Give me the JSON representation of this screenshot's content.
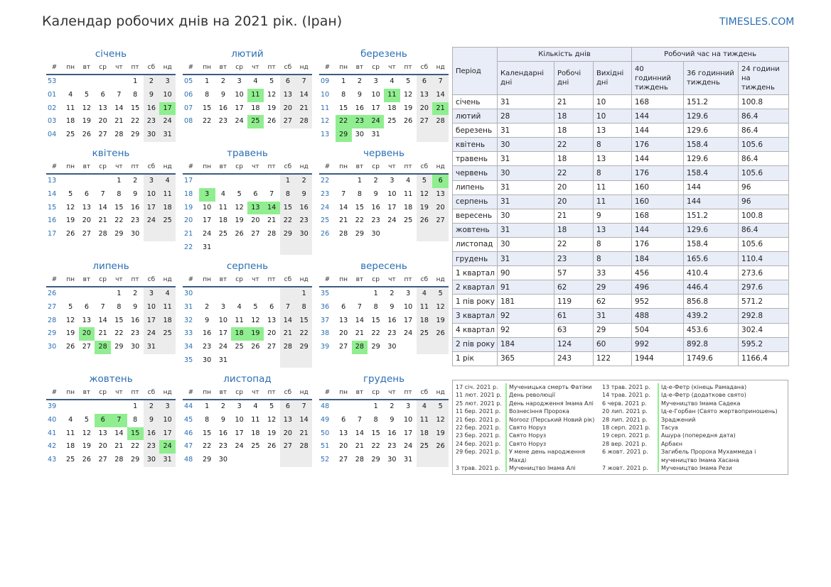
{
  "title": "Календар робочих днів на 2021 рік. (Іран)",
  "site": "TIMESLES.COM",
  "colors": {
    "accent": "#2a6eb4",
    "holiday": "#90ee90",
    "weekend": "#ececec",
    "rule": "#3d5b82",
    "table_header": "#e8edf8"
  },
  "calendar_header": [
    "#",
    "пн",
    "вт",
    "ср",
    "чт",
    "пт",
    "сб",
    "нд"
  ],
  "months": [
    {
      "name": "січень",
      "weeks": [
        [
          "53",
          "",
          "",
          "",
          "",
          "1",
          "2",
          "3"
        ],
        [
          "01",
          "4",
          "5",
          "6",
          "7",
          "8",
          "9",
          "10"
        ],
        [
          "02",
          "11",
          "12",
          "13",
          "14",
          "15",
          "16",
          "17"
        ],
        [
          "03",
          "18",
          "19",
          "20",
          "21",
          "22",
          "23",
          "24"
        ],
        [
          "04",
          "25",
          "26",
          "27",
          "28",
          "29",
          "30",
          "31"
        ]
      ],
      "holidays": [
        17
      ]
    },
    {
      "name": "лютий",
      "weeks": [
        [
          "05",
          "1",
          "2",
          "3",
          "4",
          "5",
          "6",
          "7"
        ],
        [
          "06",
          "8",
          "9",
          "10",
          "11",
          "12",
          "13",
          "14"
        ],
        [
          "07",
          "15",
          "16",
          "17",
          "18",
          "19",
          "20",
          "21"
        ],
        [
          "08",
          "22",
          "23",
          "24",
          "25",
          "26",
          "27",
          "28"
        ]
      ],
      "holidays": [
        11,
        25
      ]
    },
    {
      "name": "березень",
      "weeks": [
        [
          "09",
          "1",
          "2",
          "3",
          "4",
          "5",
          "6",
          "7"
        ],
        [
          "10",
          "8",
          "9",
          "10",
          "11",
          "12",
          "13",
          "14"
        ],
        [
          "11",
          "15",
          "16",
          "17",
          "18",
          "19",
          "20",
          "21"
        ],
        [
          "12",
          "22",
          "23",
          "24",
          "25",
          "26",
          "27",
          "28"
        ],
        [
          "13",
          "29",
          "30",
          "31",
          "",
          "",
          "",
          ""
        ]
      ],
      "holidays": [
        11,
        21,
        22,
        23,
        24,
        29
      ]
    },
    {
      "name": "квітень",
      "weeks": [
        [
          "13",
          "",
          "",
          "",
          "1",
          "2",
          "3",
          "4"
        ],
        [
          "14",
          "5",
          "6",
          "7",
          "8",
          "9",
          "10",
          "11"
        ],
        [
          "15",
          "12",
          "13",
          "14",
          "15",
          "16",
          "17",
          "18"
        ],
        [
          "16",
          "19",
          "20",
          "21",
          "22",
          "23",
          "24",
          "25"
        ],
        [
          "17",
          "26",
          "27",
          "28",
          "29",
          "30",
          "",
          ""
        ]
      ],
      "holidays": []
    },
    {
      "name": "травень",
      "weeks": [
        [
          "17",
          "",
          "",
          "",
          "",
          "",
          "1",
          "2"
        ],
        [
          "18",
          "3",
          "4",
          "5",
          "6",
          "7",
          "8",
          "9"
        ],
        [
          "19",
          "10",
          "11",
          "12",
          "13",
          "14",
          "15",
          "16"
        ],
        [
          "20",
          "17",
          "18",
          "19",
          "20",
          "21",
          "22",
          "23"
        ],
        [
          "21",
          "24",
          "25",
          "26",
          "27",
          "28",
          "29",
          "30"
        ],
        [
          "22",
          "31",
          "",
          "",
          "",
          "",
          "",
          ""
        ]
      ],
      "holidays": [
        3,
        13,
        14
      ]
    },
    {
      "name": "червень",
      "weeks": [
        [
          "22",
          "",
          "1",
          "2",
          "3",
          "4",
          "5",
          "6"
        ],
        [
          "23",
          "7",
          "8",
          "9",
          "10",
          "11",
          "12",
          "13"
        ],
        [
          "24",
          "14",
          "15",
          "16",
          "17",
          "18",
          "19",
          "20"
        ],
        [
          "25",
          "21",
          "22",
          "23",
          "24",
          "25",
          "26",
          "27"
        ],
        [
          "26",
          "28",
          "29",
          "30",
          "",
          "",
          "",
          ""
        ]
      ],
      "holidays": [
        6
      ]
    },
    {
      "name": "липень",
      "weeks": [
        [
          "26",
          "",
          "",
          "",
          "1",
          "2",
          "3",
          "4"
        ],
        [
          "27",
          "5",
          "6",
          "7",
          "8",
          "9",
          "10",
          "11"
        ],
        [
          "28",
          "12",
          "13",
          "14",
          "15",
          "16",
          "17",
          "18"
        ],
        [
          "29",
          "19",
          "20",
          "21",
          "22",
          "23",
          "24",
          "25"
        ],
        [
          "30",
          "26",
          "27",
          "28",
          "29",
          "30",
          "31",
          ""
        ]
      ],
      "holidays": [
        20,
        28
      ]
    },
    {
      "name": "серпень",
      "weeks": [
        [
          "30",
          "",
          "",
          "",
          "",
          "",
          "",
          "1"
        ],
        [
          "31",
          "2",
          "3",
          "4",
          "5",
          "6",
          "7",
          "8"
        ],
        [
          "32",
          "9",
          "10",
          "11",
          "12",
          "13",
          "14",
          "15"
        ],
        [
          "33",
          "16",
          "17",
          "18",
          "19",
          "20",
          "21",
          "22"
        ],
        [
          "34",
          "23",
          "24",
          "25",
          "26",
          "27",
          "28",
          "29"
        ],
        [
          "35",
          "30",
          "31",
          "",
          "",
          "",
          "",
          ""
        ]
      ],
      "holidays": [
        18,
        19
      ]
    },
    {
      "name": "вересень",
      "weeks": [
        [
          "35",
          "",
          "",
          "1",
          "2",
          "3",
          "4",
          "5"
        ],
        [
          "36",
          "6",
          "7",
          "8",
          "9",
          "10",
          "11",
          "12"
        ],
        [
          "37",
          "13",
          "14",
          "15",
          "16",
          "17",
          "18",
          "19"
        ],
        [
          "38",
          "20",
          "21",
          "22",
          "23",
          "24",
          "25",
          "26"
        ],
        [
          "39",
          "27",
          "28",
          "29",
          "30",
          "",
          "",
          ""
        ]
      ],
      "holidays": [
        28
      ]
    },
    {
      "name": "жовтень",
      "weeks": [
        [
          "39",
          "",
          "",
          "",
          "",
          "1",
          "2",
          "3"
        ],
        [
          "40",
          "4",
          "5",
          "6",
          "7",
          "8",
          "9",
          "10"
        ],
        [
          "41",
          "11",
          "12",
          "13",
          "14",
          "15",
          "16",
          "17"
        ],
        [
          "42",
          "18",
          "19",
          "20",
          "21",
          "22",
          "23",
          "24"
        ],
        [
          "43",
          "25",
          "26",
          "27",
          "28",
          "29",
          "30",
          "31"
        ]
      ],
      "holidays": [
        6,
        7,
        15,
        24
      ]
    },
    {
      "name": "листопад",
      "weeks": [
        [
          "44",
          "1",
          "2",
          "3",
          "4",
          "5",
          "6",
          "7"
        ],
        [
          "45",
          "8",
          "9",
          "10",
          "11",
          "12",
          "13",
          "14"
        ],
        [
          "46",
          "15",
          "16",
          "17",
          "18",
          "19",
          "20",
          "21"
        ],
        [
          "47",
          "22",
          "23",
          "24",
          "25",
          "26",
          "27",
          "28"
        ],
        [
          "48",
          "29",
          "30",
          "",
          "",
          "",
          "",
          ""
        ]
      ],
      "holidays": []
    },
    {
      "name": "грудень",
      "weeks": [
        [
          "48",
          "",
          "",
          "1",
          "2",
          "3",
          "4",
          "5"
        ],
        [
          "49",
          "6",
          "7",
          "8",
          "9",
          "10",
          "11",
          "12"
        ],
        [
          "50",
          "13",
          "14",
          "15",
          "16",
          "17",
          "18",
          "19"
        ],
        [
          "51",
          "20",
          "21",
          "22",
          "23",
          "24",
          "25",
          "26"
        ],
        [
          "52",
          "27",
          "28",
          "29",
          "30",
          "31",
          "",
          ""
        ]
      ],
      "holidays": []
    }
  ],
  "stats": {
    "period_label": "Період",
    "days_group": "Кількість днів",
    "hours_group": "Робочий час на тиждень",
    "subheaders": [
      "Календарні дні",
      "Робочі дні",
      "Вихідні дні",
      "40 годинний тиждень",
      "36 годинний тиждень",
      "24 години на тиждень"
    ],
    "rows": [
      [
        "січень",
        "31",
        "21",
        "10",
        "168",
        "151.2",
        "100.8"
      ],
      [
        "лютий",
        "28",
        "18",
        "10",
        "144",
        "129.6",
        "86.4"
      ],
      [
        "березень",
        "31",
        "18",
        "13",
        "144",
        "129.6",
        "86.4"
      ],
      [
        "квітень",
        "30",
        "22",
        "8",
        "176",
        "158.4",
        "105.6"
      ],
      [
        "травень",
        "31",
        "18",
        "13",
        "144",
        "129.6",
        "86.4"
      ],
      [
        "червень",
        "30",
        "22",
        "8",
        "176",
        "158.4",
        "105.6"
      ],
      [
        "липень",
        "31",
        "20",
        "11",
        "160",
        "144",
        "96"
      ],
      [
        "серпень",
        "31",
        "20",
        "11",
        "160",
        "144",
        "96"
      ],
      [
        "вересень",
        "30",
        "21",
        "9",
        "168",
        "151.2",
        "100.8"
      ],
      [
        "жовтень",
        "31",
        "18",
        "13",
        "144",
        "129.6",
        "86.4"
      ],
      [
        "листопад",
        "30",
        "22",
        "8",
        "176",
        "158.4",
        "105.6"
      ],
      [
        "грудень",
        "31",
        "23",
        "8",
        "184",
        "165.6",
        "110.4"
      ],
      [
        "1 квартал",
        "90",
        "57",
        "33",
        "456",
        "410.4",
        "273.6"
      ],
      [
        "2 квартал",
        "91",
        "62",
        "29",
        "496",
        "446.4",
        "297.6"
      ],
      [
        "1 пів року",
        "181",
        "119",
        "62",
        "952",
        "856.8",
        "571.2"
      ],
      [
        "3 квартал",
        "92",
        "61",
        "31",
        "488",
        "439.2",
        "292.8"
      ],
      [
        "4 квартал",
        "92",
        "63",
        "29",
        "504",
        "453.6",
        "302.4"
      ],
      [
        "2 пів року",
        "184",
        "124",
        "60",
        "992",
        "892.8",
        "595.2"
      ],
      [
        "1 рік",
        "365",
        "243",
        "122",
        "1944",
        "1749.6",
        "1166.4"
      ]
    ]
  },
  "holidays": [
    {
      "date": "17 січ. 2021 р.",
      "name": "Мученицька смерть Фатіми",
      "date2": "13 трав. 2021 р.",
      "name2": "Ід-е-Фетр (кінець Рамадана)"
    },
    {
      "date": "11 лют. 2021 р.",
      "name": "День революції",
      "date2": "14 трав. 2021 р.",
      "name2": "Ід-е-Фетр (додаткове свято)"
    },
    {
      "date": "25 лют. 2021 р.",
      "name": "День народження Імама Алі",
      "date2": "6 черв. 2021 р.",
      "name2": "Мучеництво Імама Садека"
    },
    {
      "date": "11 бер. 2021 р.",
      "name": "Вознесіння Пророка",
      "date2": "20 лип. 2021 р.",
      "name2": "Ід-е-Горбан (Свято жертвоприношень)"
    },
    {
      "date": "21 бер. 2021 р.",
      "name": "Norooz (Перський Новий рік)",
      "date2": "28 лип. 2021 р.",
      "name2": "Зраджений"
    },
    {
      "date": "22 бер. 2021 р.",
      "name": "Свято Норуз",
      "date2": "18 серп. 2021 р.",
      "name2": "Тасуа"
    },
    {
      "date": "23 бер. 2021 р.",
      "name": "Свято Норуз",
      "date2": "19 серп. 2021 р.",
      "name2": "Ашура (попередня дата)"
    },
    {
      "date": "24 бер. 2021 р.",
      "name": "Свято Норуз",
      "date2": "28 вер. 2021 р.",
      "name2": "Арбаєн"
    },
    {
      "date": "29 бер. 2021 р.",
      "name": "У мене день народження Махді",
      "date2": "6 жовт. 2021 р.",
      "name2": "Загибель Пророка Мухаммеда і мучеництво Імама Хасана"
    },
    {
      "date": "3 трав. 2021 р.",
      "name": "Мучеництво Імама Алі",
      "date2": "7 жовт. 2021 р.",
      "name2": "Мучеництво Імама Рези"
    }
  ]
}
